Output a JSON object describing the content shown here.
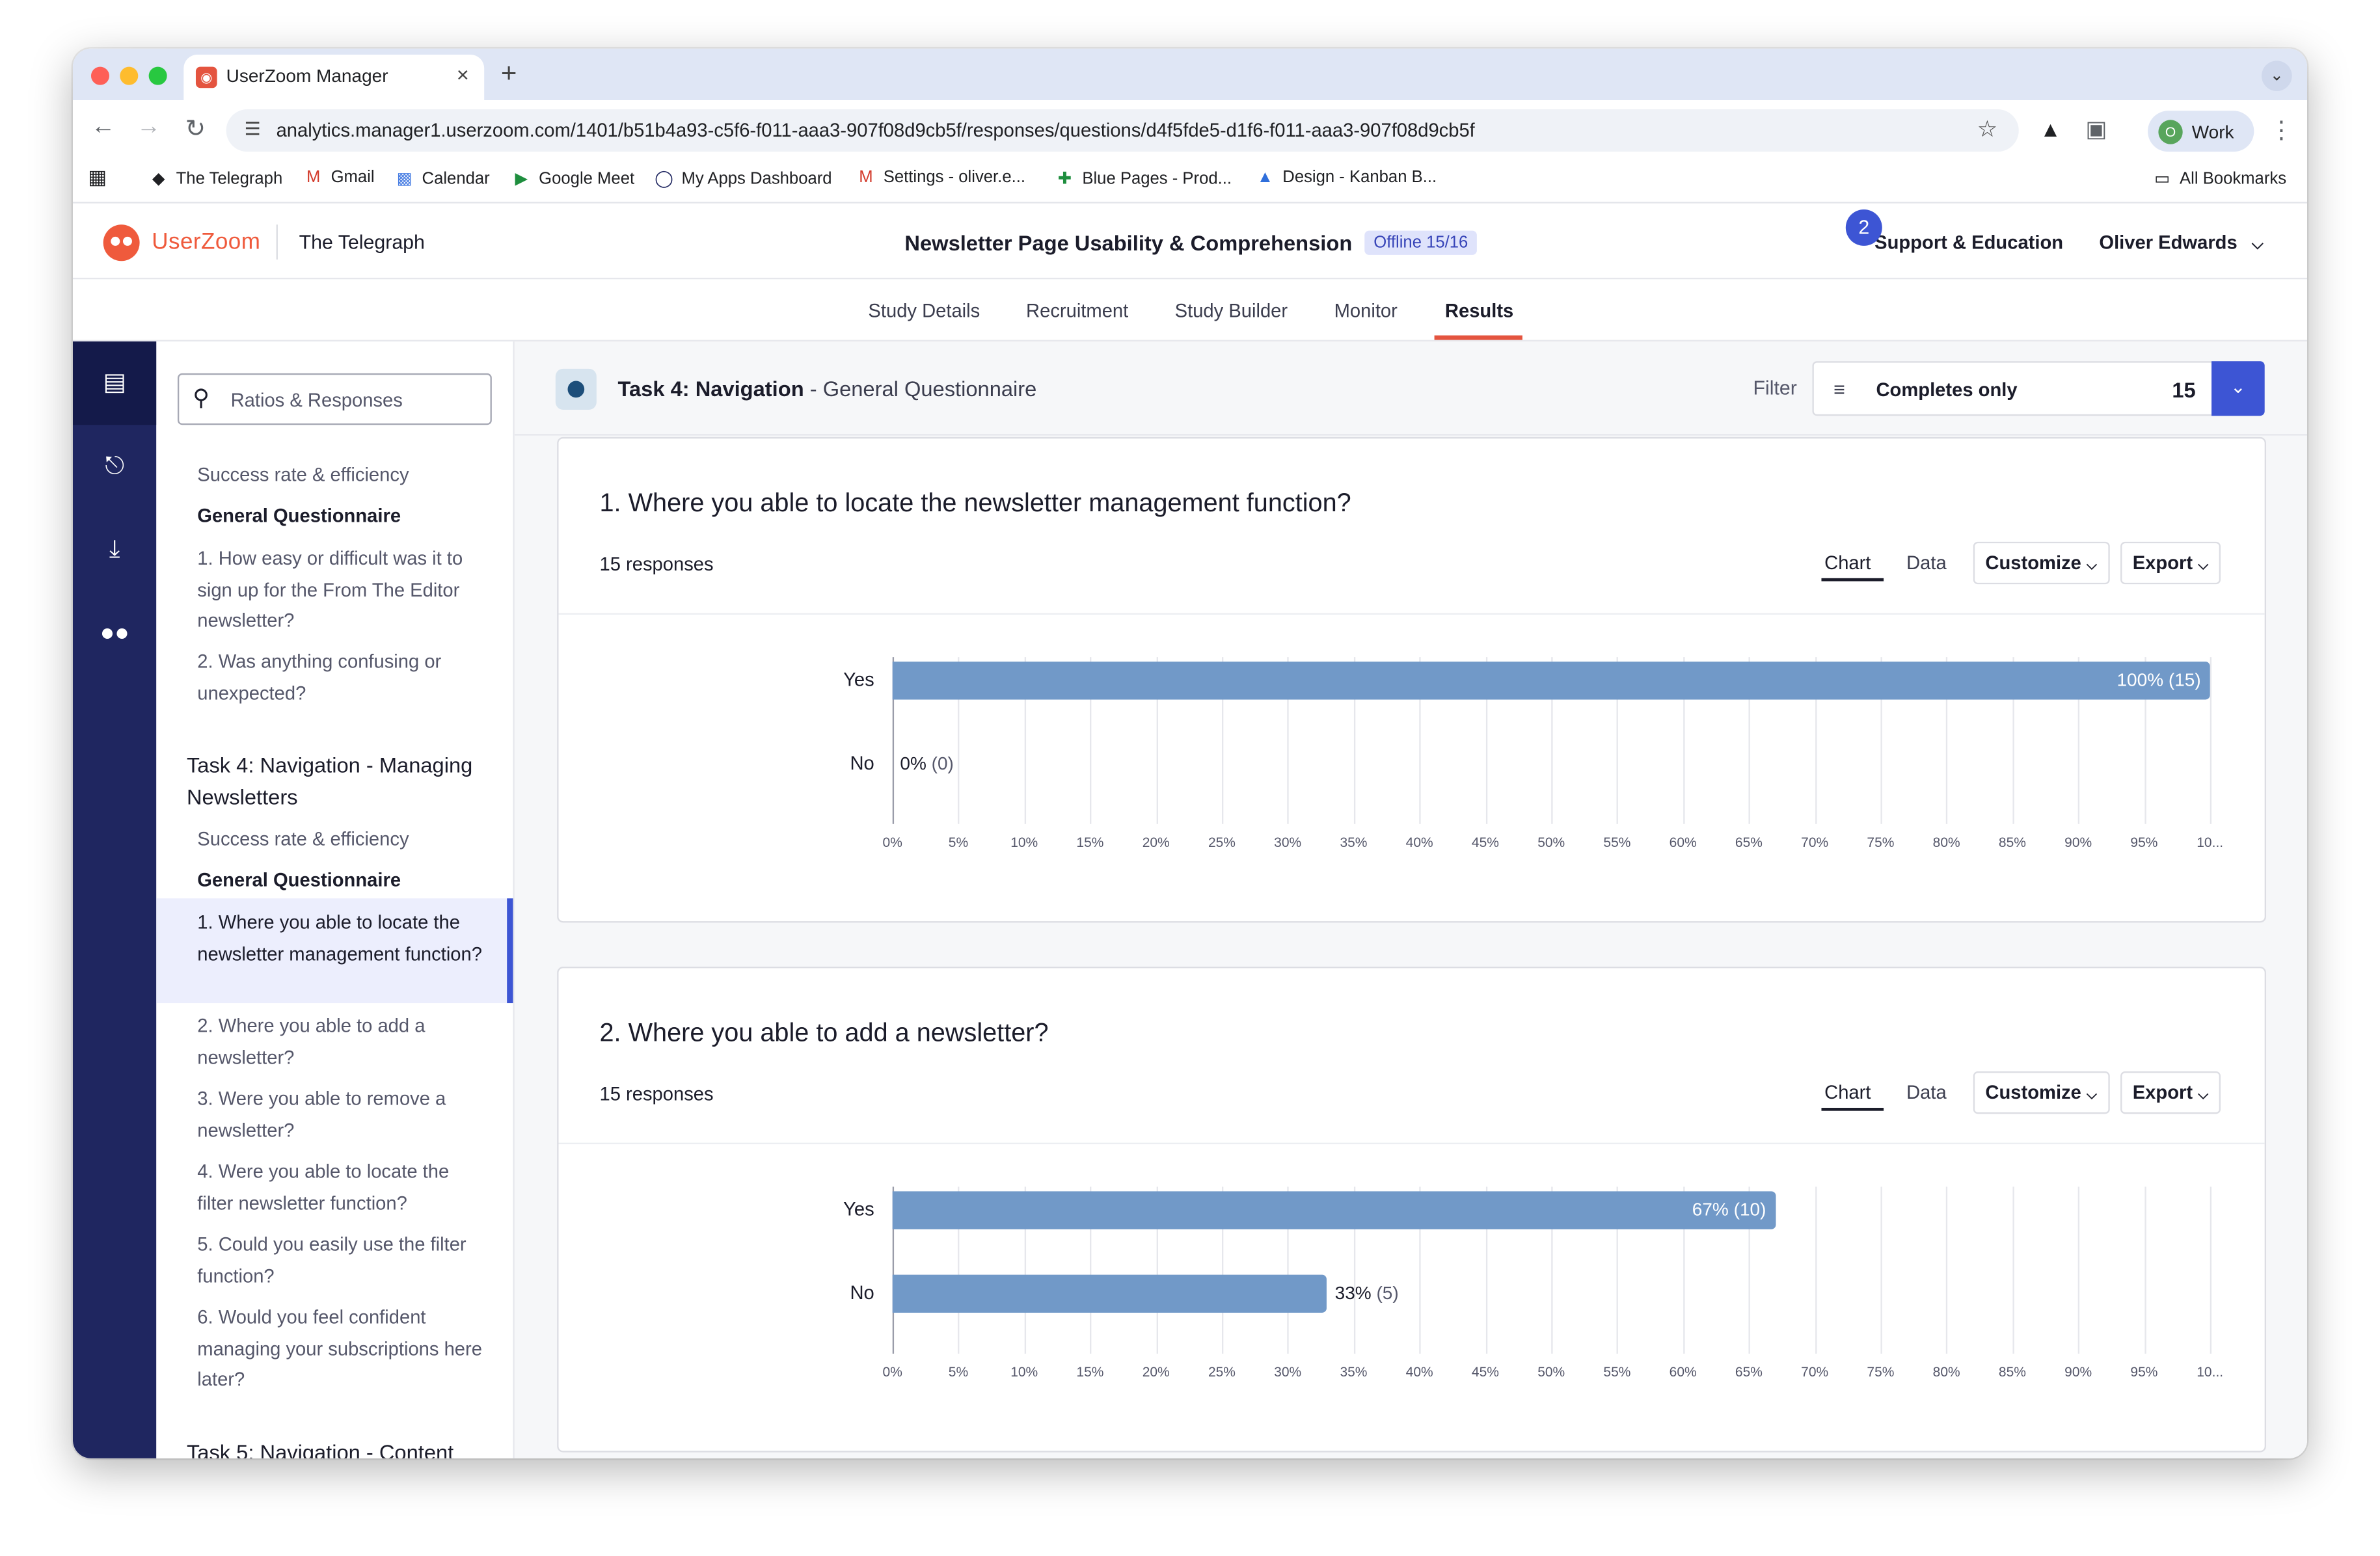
{
  "browser": {
    "tab_title": "UserZoom Manager",
    "tab_favicon": "userzoom-favicon-icon",
    "url": "analytics.manager1.userzoom.com/1401/b51b4a93-c5f6-f011-aaa3-907f08d9cb5f/responses/questions/d4f5fde5-d1f6-f011-aaa3-907f08d9cb5f",
    "profile_initial": "O",
    "profile_label": "Work",
    "bookmarks": [
      "The Telegraph",
      "Gmail",
      "Calendar",
      "Google Meet",
      "My Apps Dashboard",
      "Settings - oliver.e...",
      "Blue Pages - Prod...",
      "Design - Kanban B..."
    ],
    "all_bookmarks": "All Bookmarks"
  },
  "header": {
    "logo_text": "UserZoom",
    "org": "The Telegraph",
    "study_title": "Newsletter Page Usability & Comprehension",
    "status_badge": "Offline 15/16",
    "notification_count": "2",
    "support": "Support & Education",
    "user": "Oliver Edwards"
  },
  "subnav": {
    "tabs": [
      "Study Details",
      "Recruitment",
      "Study Builder",
      "Monitor",
      "Results"
    ],
    "active": "Results"
  },
  "sidebar": {
    "search_placeholder": "Ratios & Responses",
    "items": [
      "Success rate & efficiency",
      "General Questionnaire",
      "1. How easy or difficult was it to sign up for the From The Editor newsletter?",
      "2. Was anything confusing or unexpected?",
      "Task 4: Navigation - Managing Newsletters",
      "Success rate & efficiency",
      "General Questionnaire",
      "1. Where you able to locate the newsletter management function?",
      "2. Where you able to add a newsletter?",
      "3. Were you able to remove a newsletter?",
      "4. Were you able to locate the filter newsletter function?",
      "5. Could you easily use the filter function?",
      "6. Would you feel confident managing your subscriptions here later?",
      "Task 5: Navigation - Content"
    ]
  },
  "task_header": {
    "task": "Task 4: Navigation",
    "section": "- General Questionnaire",
    "filter_label": "Filter",
    "filter_value": "Completes only",
    "filter_count": "15"
  },
  "card_controls": {
    "chart_tab": "Chart",
    "data_tab": "Data",
    "customize": "Customize",
    "export": "Export"
  },
  "questions": [
    {
      "title": "1. Where you able to locate the newsletter management function?",
      "responses": "15 responses"
    },
    {
      "title": "2. Where you able to add a newsletter?",
      "responses": "15 responses"
    }
  ],
  "colors": {
    "bar": "#7199c8",
    "accent": "#3d55d4",
    "brand": "#ef5a3c",
    "rail": "#1f2660"
  },
  "chart_data": [
    {
      "type": "bar",
      "orientation": "horizontal",
      "categories": [
        "Yes",
        "No"
      ],
      "values": [
        100,
        0
      ],
      "counts": [
        15,
        0
      ],
      "data_labels": [
        "100%",
        "0%"
      ],
      "count_labels": [
        "(15)",
        "(0)"
      ],
      "xlim": [
        0,
        100
      ],
      "x_ticks": [
        "0%",
        "5%",
        "10%",
        "15%",
        "20%",
        "25%",
        "30%",
        "35%",
        "40%",
        "45%",
        "50%",
        "55%",
        "60%",
        "65%",
        "70%",
        "75%",
        "80%",
        "85%",
        "90%",
        "95%",
        "10..."
      ],
      "grid": true
    },
    {
      "type": "bar",
      "orientation": "horizontal",
      "categories": [
        "Yes",
        "No"
      ],
      "values": [
        67,
        33
      ],
      "counts": [
        10,
        5
      ],
      "data_labels": [
        "67%",
        "33%"
      ],
      "count_labels": [
        "(10)",
        "(5)"
      ],
      "xlim": [
        0,
        100
      ],
      "x_ticks": [
        "0%",
        "5%",
        "10%",
        "15%",
        "20%",
        "25%",
        "30%",
        "35%",
        "40%",
        "45%",
        "50%",
        "55%",
        "60%",
        "65%",
        "70%",
        "75%",
        "80%",
        "85%",
        "90%",
        "95%",
        "10..."
      ],
      "grid": true
    }
  ]
}
